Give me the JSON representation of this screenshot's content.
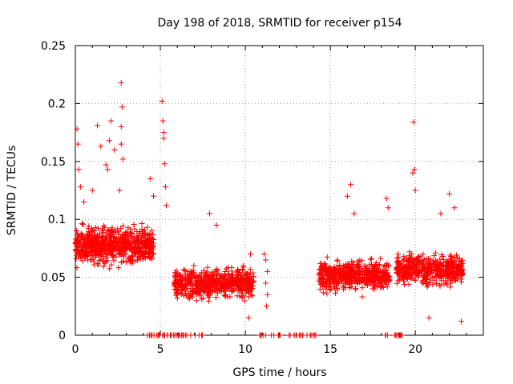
{
  "chart_data": {
    "type": "scatter",
    "title": "Day 198 of 2018, SRMTID for receiver p154",
    "xlabel": "GPS time / hours",
    "ylabel": "SRMTID / TECUs",
    "xlim": [
      0,
      24
    ],
    "ylim": [
      0,
      0.25
    ],
    "xticks": [
      0,
      5,
      10,
      15,
      20
    ],
    "yticks": [
      0,
      0.05,
      0.1,
      0.15,
      0.2,
      0.25
    ],
    "xtick_labels": [
      "0",
      "5",
      "10",
      "15",
      "20"
    ],
    "ytick_labels": [
      "0",
      "0.05",
      "0.1",
      "0.15",
      "0.2",
      "0.25"
    ],
    "grid": true,
    "marker": "+",
    "series": [
      {
        "name": "SRMTID",
        "color": "#ff0000",
        "clusters": [
          {
            "x_range": [
              0.0,
              4.6
            ],
            "y_center": 0.078,
            "y_spread": 0.022,
            "count": 700
          },
          {
            "x_range": [
              5.8,
              10.5
            ],
            "y_center": 0.045,
            "y_spread": 0.018,
            "count": 600
          },
          {
            "x_range": [
              14.3,
              18.5
            ],
            "y_center": 0.052,
            "y_spread": 0.018,
            "count": 550
          },
          {
            "x_range": [
              18.9,
              22.8
            ],
            "y_center": 0.057,
            "y_spread": 0.018,
            "count": 500
          },
          {
            "x_range": [
              4.2,
              7.6
            ],
            "y_center": 0.0,
            "y_spread": 0.0,
            "count": 40
          },
          {
            "x_range": [
              10.8,
              14.3
            ],
            "y_center": 0.0,
            "y_spread": 0.0,
            "count": 30
          },
          {
            "x_range": [
              18.2,
              19.3
            ],
            "y_center": 0.0,
            "y_spread": 0.0,
            "count": 15
          }
        ],
        "outliers": [
          {
            "x": 0.1,
            "y": 0.178
          },
          {
            "x": 0.15,
            "y": 0.165
          },
          {
            "x": 0.3,
            "y": 0.128
          },
          {
            "x": 0.2,
            "y": 0.143
          },
          {
            "x": 0.5,
            "y": 0.115
          },
          {
            "x": 1.3,
            "y": 0.181
          },
          {
            "x": 1.5,
            "y": 0.163
          },
          {
            "x": 1.8,
            "y": 0.147
          },
          {
            "x": 1.9,
            "y": 0.143
          },
          {
            "x": 2.0,
            "y": 0.168
          },
          {
            "x": 2.1,
            "y": 0.185
          },
          {
            "x": 2.3,
            "y": 0.16
          },
          {
            "x": 2.7,
            "y": 0.218
          },
          {
            "x": 2.75,
            "y": 0.197
          },
          {
            "x": 2.7,
            "y": 0.18
          },
          {
            "x": 2.7,
            "y": 0.165
          },
          {
            "x": 2.8,
            "y": 0.152
          },
          {
            "x": 2.6,
            "y": 0.125
          },
          {
            "x": 1.0,
            "y": 0.125
          },
          {
            "x": 4.4,
            "y": 0.135
          },
          {
            "x": 4.6,
            "y": 0.12
          },
          {
            "x": 5.1,
            "y": 0.202
          },
          {
            "x": 5.15,
            "y": 0.185
          },
          {
            "x": 5.2,
            "y": 0.17
          },
          {
            "x": 5.25,
            "y": 0.148
          },
          {
            "x": 5.3,
            "y": 0.128
          },
          {
            "x": 5.35,
            "y": 0.112
          },
          {
            "x": 5.2,
            "y": 0.175
          },
          {
            "x": 7.9,
            "y": 0.105
          },
          {
            "x": 8.3,
            "y": 0.095
          },
          {
            "x": 11.1,
            "y": 0.07
          },
          {
            "x": 11.2,
            "y": 0.065
          },
          {
            "x": 11.3,
            "y": 0.055
          },
          {
            "x": 11.2,
            "y": 0.045
          },
          {
            "x": 11.3,
            "y": 0.035
          },
          {
            "x": 11.25,
            "y": 0.025
          },
          {
            "x": 10.3,
            "y": 0.07
          },
          {
            "x": 16.2,
            "y": 0.13
          },
          {
            "x": 16.0,
            "y": 0.12
          },
          {
            "x": 16.4,
            "y": 0.105
          },
          {
            "x": 18.3,
            "y": 0.118
          },
          {
            "x": 18.4,
            "y": 0.11
          },
          {
            "x": 19.9,
            "y": 0.184
          },
          {
            "x": 19.95,
            "y": 0.143
          },
          {
            "x": 19.85,
            "y": 0.14
          },
          {
            "x": 20.0,
            "y": 0.125
          },
          {
            "x": 22.0,
            "y": 0.122
          },
          {
            "x": 21.5,
            "y": 0.105
          },
          {
            "x": 22.3,
            "y": 0.11
          },
          {
            "x": 22.7,
            "y": 0.012
          },
          {
            "x": 20.8,
            "y": 0.015
          },
          {
            "x": 10.2,
            "y": 0.015
          }
        ]
      }
    ]
  }
}
